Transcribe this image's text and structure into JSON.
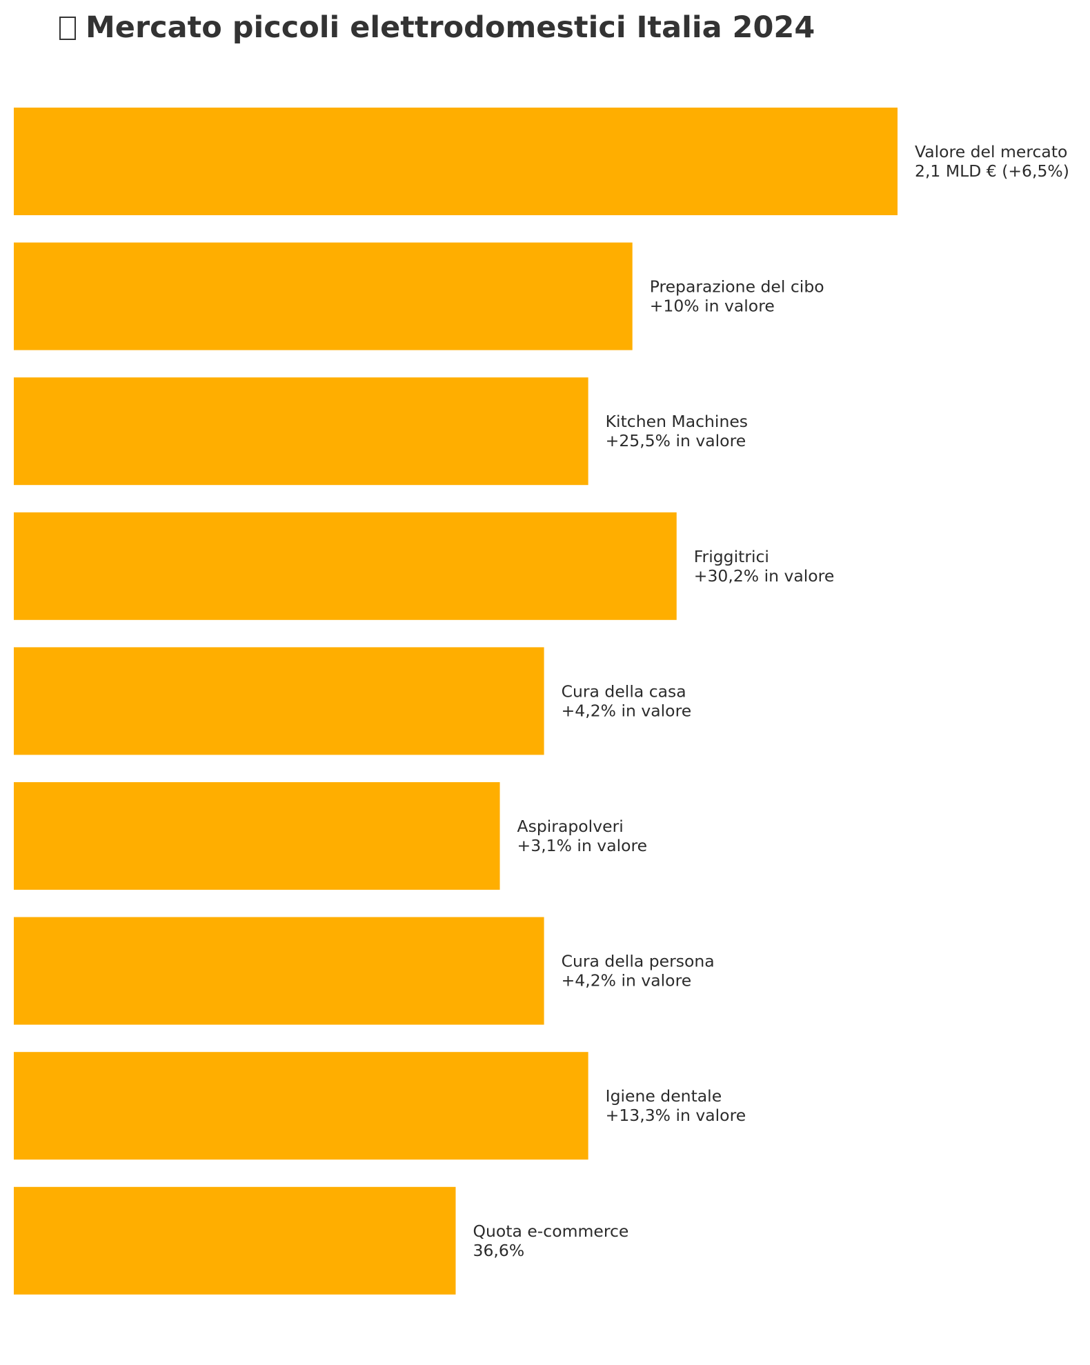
{
  "title": "Mercato piccoli elettrodomestici Italia 2024",
  "title_icon": "missing-glyph-icon",
  "colors": {
    "bar": "#FFAE00",
    "text": "#2B2B2B",
    "title": "#333333",
    "background": "#FFFFFF"
  },
  "chart_data": {
    "type": "bar",
    "orientation": "horizontal",
    "title": "Mercato piccoli elettrodomestici Italia 2024",
    "xlabel": "",
    "ylabel": "",
    "axes_visible": false,
    "grid": false,
    "legend": "none",
    "xlim": [
      0,
      10
    ],
    "categories": [
      "Valore del mercato",
      "Preparazione del cibo",
      "Kitchen Machines",
      "Friggitrici",
      "Cura della casa",
      "Aspirapolveri",
      "Cura della persona",
      "Igiene dentale",
      "Quota e-commerce"
    ],
    "values": [
      10,
      7,
      6.5,
      7.5,
      6,
      5.5,
      6,
      6.5,
      5
    ],
    "value_labels": [
      "2,1 MLD € (+6,5%)",
      "+10% in valore",
      "+25,5% in valore",
      "+30,2% in valore",
      "+4,2% in valore",
      "+3,1% in valore",
      "+4,2% in valore",
      "+13,3% in valore",
      "36,6%"
    ]
  }
}
